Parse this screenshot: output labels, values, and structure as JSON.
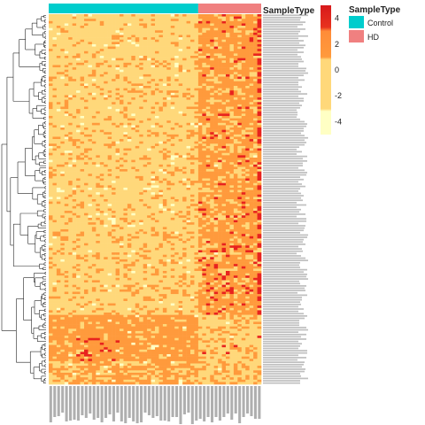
{
  "chart_data": {
    "type": "heatmap",
    "title": "",
    "annotation_title": "SampleType",
    "groups": [
      {
        "name": "Control",
        "count": 38,
        "color": "#00CDCD"
      },
      {
        "name": "HD",
        "count": 16,
        "color": "#F08080"
      }
    ],
    "n_rows": 160,
    "colorbar": {
      "ticks": [
        4,
        2,
        0,
        -2,
        -4
      ],
      "range": [
        -5,
        5
      ],
      "colors": [
        "#FFFFC4",
        "#FFD87A",
        "#FF9A3C",
        "#F55A28",
        "#D7191C"
      ]
    },
    "row_labels_note": "tiny unreadable gene labels",
    "col_labels_note": "tiny unreadable sample labels"
  },
  "legend": {
    "title": "SampleType",
    "items": [
      {
        "label": "Control",
        "color": "#00CDCD"
      },
      {
        "label": "HD",
        "color": "#F08080"
      }
    ]
  }
}
